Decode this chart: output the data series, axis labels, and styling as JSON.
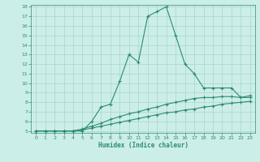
{
  "xlabel": "Humidex (Indice chaleur)",
  "x_values": [
    0,
    1,
    2,
    3,
    4,
    5,
    6,
    7,
    8,
    9,
    10,
    11,
    12,
    13,
    14,
    15,
    16,
    17,
    18,
    19,
    20,
    21,
    22,
    23
  ],
  "line1_y": [
    5,
    5,
    5,
    5,
    5,
    5,
    6.0,
    7.5,
    7.8,
    10.2,
    13.0,
    12.2,
    17.0,
    17.5,
    18.0,
    15.0,
    12.0,
    11.0,
    9.5,
    9.5,
    9.5,
    9.5,
    8.5,
    8.5
  ],
  "line2_y": [
    5,
    5,
    5,
    5,
    5,
    5.2,
    5.5,
    5.8,
    6.2,
    6.5,
    6.8,
    7.0,
    7.3,
    7.5,
    7.8,
    8.0,
    8.2,
    8.4,
    8.5,
    8.5,
    8.6,
    8.6,
    8.5,
    8.7
  ],
  "line3_y": [
    5,
    5,
    5,
    5,
    5,
    5.1,
    5.3,
    5.5,
    5.7,
    5.9,
    6.1,
    6.3,
    6.5,
    6.7,
    6.9,
    7.0,
    7.2,
    7.3,
    7.5,
    7.6,
    7.8,
    7.9,
    8.0,
    8.1
  ],
  "line_color": "#2d8b72",
  "bg_color": "#cceee8",
  "grid_color": "#aad4cc",
  "ylim": [
    5,
    18
  ],
  "xlim": [
    -0.5,
    23.5
  ],
  "yticks": [
    5,
    6,
    7,
    8,
    9,
    10,
    11,
    12,
    13,
    14,
    15,
    16,
    17,
    18
  ],
  "xticks": [
    0,
    1,
    2,
    3,
    4,
    5,
    6,
    7,
    8,
    9,
    10,
    11,
    12,
    13,
    14,
    15,
    16,
    17,
    18,
    19,
    20,
    21,
    22,
    23
  ]
}
